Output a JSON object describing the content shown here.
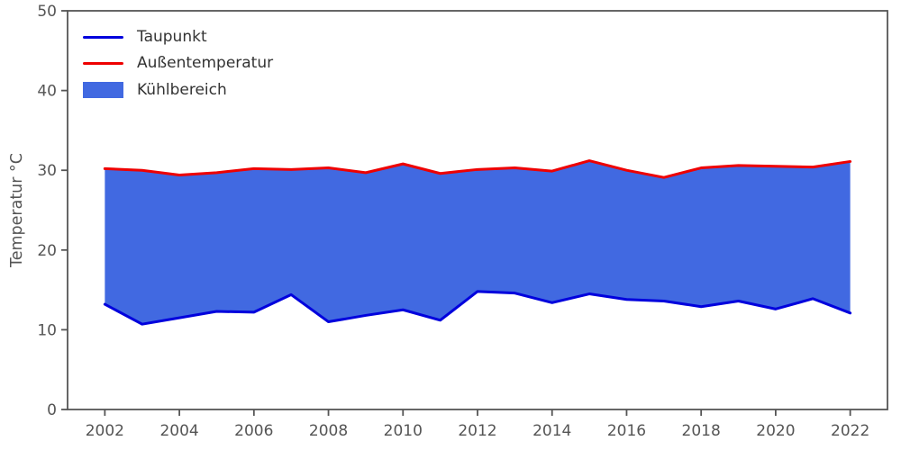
{
  "chart_data": {
    "type": "area",
    "title": "",
    "xlabel": "",
    "ylabel": "Temperatur °C",
    "x": [
      2002,
      2003,
      2004,
      2005,
      2006,
      2007,
      2008,
      2009,
      2010,
      2011,
      2012,
      2013,
      2014,
      2015,
      2016,
      2017,
      2018,
      2019,
      2020,
      2021,
      2022
    ],
    "series": [
      {
        "name": "Taupunkt",
        "color": "#0000dd",
        "values": [
          13.2,
          10.7,
          11.5,
          12.3,
          12.2,
          14.4,
          11.0,
          11.8,
          12.5,
          11.2,
          14.8,
          14.6,
          13.4,
          14.5,
          13.8,
          13.6,
          12.9,
          13.6,
          12.6,
          13.9,
          12.1
        ]
      },
      {
        "name": "Außentemperatur",
        "color": "#ee0000",
        "values": [
          30.2,
          30.0,
          29.4,
          29.7,
          30.2,
          30.1,
          30.3,
          29.7,
          30.8,
          29.6,
          30.1,
          30.3,
          29.9,
          31.2,
          30.0,
          29.1,
          30.3,
          30.6,
          30.5,
          30.4,
          31.1
        ]
      }
    ],
    "fill": {
      "name": "Kühlbereich",
      "color": "#4169e1",
      "between": [
        "Taupunkt",
        "Außentemperatur"
      ]
    },
    "xlim": [
      2001,
      2023
    ],
    "ylim": [
      0,
      50
    ],
    "xticks": [
      2002,
      2004,
      2006,
      2008,
      2010,
      2012,
      2014,
      2016,
      2018,
      2020,
      2022
    ],
    "yticks": [
      0,
      10,
      20,
      30,
      40,
      50
    ],
    "grid": false,
    "legend_position": "upper left",
    "axis_color": "#555555",
    "tick_label_color": "#555555",
    "legend_text_color": "#333333"
  }
}
